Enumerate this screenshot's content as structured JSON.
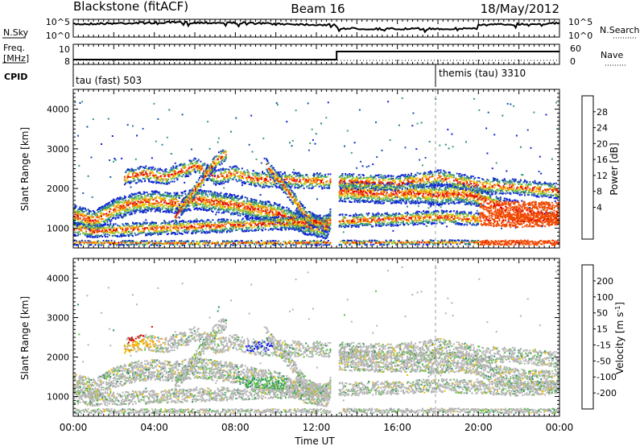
{
  "header": {
    "station": "Blackstone (fitACF)",
    "beam": "Beam 16",
    "date": "18/May/2012"
  },
  "noise_panel": {
    "left_label": "N.Sky",
    "right_label": "N.Search",
    "left_ticks": [
      "10^5",
      "10^0"
    ],
    "right_ticks": [
      "10^5",
      "10^0"
    ]
  },
  "freq_panel": {
    "left_label_line1": "Freq.",
    "left_label_line2": "[MHz]",
    "right_label": "Nave",
    "left_ticks": [
      "10",
      "8"
    ],
    "right_ticks": [
      "60",
      "0"
    ],
    "freq_mhz": 10,
    "nave_steps": [
      {
        "from_hour": 0,
        "to_hour": 13,
        "nave": 10
      },
      {
        "from_hour": 13,
        "to_hour": 24,
        "nave": 45
      }
    ]
  },
  "cpid": {
    "label": "CPID",
    "modes": [
      {
        "name": "tau (fast) 503",
        "start_hour": 0
      },
      {
        "name": "themis (tau) 3310",
        "start_hour": 18
      }
    ]
  },
  "power_panel": {
    "ylabel": "Slant Range [km]",
    "yticks": [
      "4000",
      "3000",
      "2000",
      "1000"
    ],
    "colorbar_label": "Power [dB]",
    "colorbar_ticks": [
      "28",
      "24",
      "20",
      "16",
      "12",
      "8",
      "4"
    ],
    "colors": [
      "#1020d8",
      "#1a50b0",
      "#2f7f8f",
      "#3aa070",
      "#8fd03a",
      "#f5c400",
      "#f08a00",
      "#f04800",
      "#e00000"
    ]
  },
  "velocity_panel": {
    "ylabel": "Slant Range [km]",
    "yticks": [
      "4000",
      "3000",
      "2000",
      "1000"
    ],
    "colorbar_label": "Velocity [m s",
    "colorbar_label_sup": "-1",
    "colorbar_label_end": "]",
    "colorbar_ticks": [
      "200",
      "100",
      "50",
      "15",
      "-15",
      "-50",
      "-100",
      "-200"
    ],
    "colors": [
      "#1020e0",
      "#1a6ab0",
      "#2a9060",
      "#58c040",
      "#b4b4b4",
      "#f0c000",
      "#f09000",
      "#f05000",
      "#e00000"
    ]
  },
  "xaxis": {
    "label": "Time UT",
    "ticks": [
      "00:00",
      "04:00",
      "08:00",
      "12:00",
      "16:00",
      "20:00",
      "00:00"
    ]
  },
  "chart_data": {
    "type": "heatmap",
    "title": "Blackstone (fitACF)  Beam 16  18/May/2012",
    "xlabel": "Time UT",
    "ylabel": "Slant Range [km]",
    "x_range_hours": [
      0,
      24
    ],
    "ylim_km": [
      500,
      4500
    ],
    "grid": false,
    "scatter_bands": [
      {
        "name": "main band",
        "points": [
          [
            0,
            1350
          ],
          [
            1,
            1200
          ],
          [
            2,
            1500
          ],
          [
            3,
            1650
          ],
          [
            4,
            1700
          ],
          [
            5,
            1650
          ],
          [
            6,
            1750
          ],
          [
            8,
            1600
          ],
          [
            10,
            1400
          ],
          [
            11.5,
            1100
          ],
          [
            12.5,
            1000
          ],
          [
            13.1,
            1950
          ],
          [
            15,
            1900
          ],
          [
            17,
            1900
          ],
          [
            18,
            1850
          ],
          [
            19,
            1900
          ],
          [
            20,
            1800
          ],
          [
            21,
            1550
          ],
          [
            22,
            1450
          ],
          [
            24,
            1400
          ]
        ]
      },
      {
        "name": "upper band",
        "points": [
          [
            2.5,
            2300
          ],
          [
            3.5,
            2400
          ],
          [
            4.5,
            2300
          ],
          [
            6,
            2600
          ],
          [
            7,
            2300
          ],
          [
            8,
            2400
          ],
          [
            9,
            2250
          ],
          [
            13.1,
            2200
          ],
          [
            16,
            2150
          ],
          [
            18,
            2300
          ],
          [
            19,
            2200
          ],
          [
            20,
            2100
          ],
          [
            22,
            2050
          ],
          [
            24,
            1950
          ]
        ]
      },
      {
        "name": "lower band",
        "points": [
          [
            0,
            1000
          ],
          [
            1,
            950
          ],
          [
            13.1,
            1200
          ],
          [
            16,
            1250
          ],
          [
            18,
            1300
          ],
          [
            20,
            1250
          ],
          [
            22,
            1200
          ],
          [
            24,
            1250
          ]
        ]
      },
      {
        "name": "rising arc",
        "points": [
          [
            5,
            1300
          ],
          [
            6,
            2000
          ],
          [
            7,
            2700
          ],
          [
            7.5,
            2900
          ]
        ]
      },
      {
        "name": "falling arc",
        "points": [
          [
            9.5,
            2600
          ],
          [
            10.5,
            2000
          ],
          [
            11.5,
            1300
          ],
          [
            12.5,
            1050
          ]
        ]
      },
      {
        "name": "near range",
        "points": [
          [
            0,
            650
          ],
          [
            6,
            640
          ],
          [
            12,
            650
          ],
          [
            18,
            660
          ],
          [
            24,
            650
          ]
        ]
      }
    ],
    "velocity_features": [
      {
        "name": "negative (orange) patch",
        "points": [
          [
            2,
            2050
          ],
          [
            3,
            2300
          ],
          [
            4,
            2400
          ],
          [
            4.5,
            2400
          ]
        ],
        "velocity": -50
      },
      {
        "name": "positive (blue) patch",
        "points": [
          [
            8.5,
            2300
          ],
          [
            9.2,
            2300
          ],
          [
            9.8,
            2250
          ]
        ],
        "velocity": 200
      },
      {
        "name": "positive (green) patch",
        "points": [
          [
            8,
            1400
          ],
          [
            9,
            1350
          ],
          [
            10.5,
            1350
          ]
        ],
        "velocity": 50
      },
      {
        "name": "red patch",
        "points": [
          [
            2.7,
            2400
          ],
          [
            6.3,
            3700
          ]
        ],
        "velocity": -200
      }
    ]
  }
}
